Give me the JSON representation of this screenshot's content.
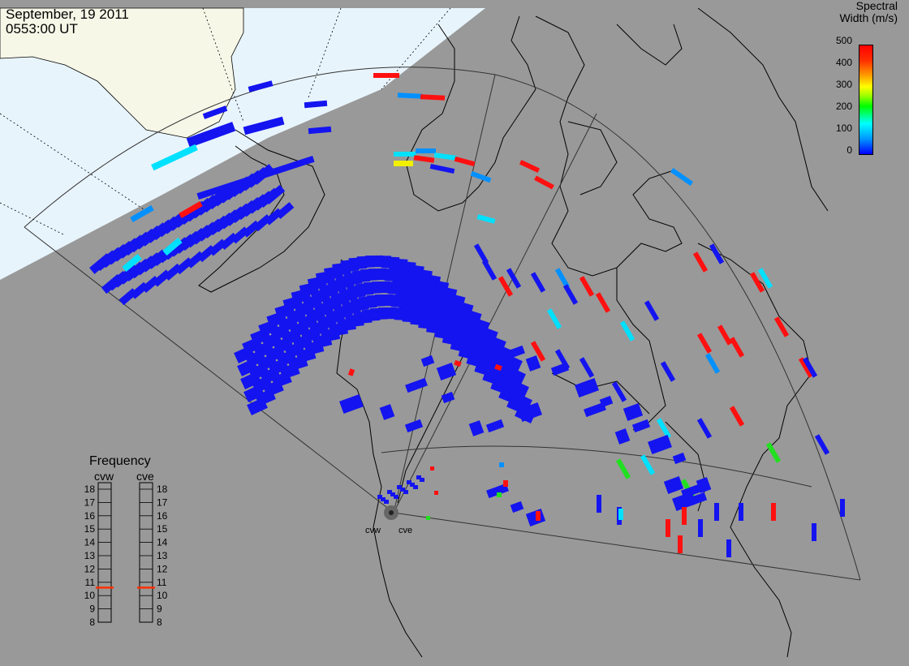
{
  "header": {
    "date": "September, 19 2011",
    "time": "0553:00 UT"
  },
  "colorbar": {
    "title_line1": "Spectral",
    "title_line2": "Width (m/s)",
    "ticks": [
      "500",
      "400",
      "300",
      "200",
      "100",
      "0"
    ],
    "range": [
      0,
      500
    ],
    "colors": [
      "#0000ff",
      "#0096ff",
      "#00ffff",
      "#00ff00",
      "#ffff00",
      "#ff8000",
      "#ff0000"
    ]
  },
  "frequency_panel": {
    "title": "Frequency",
    "left_label": "cvw",
    "right_label": "cve",
    "scale": [
      "18",
      "17",
      "16",
      "15",
      "14",
      "13",
      "12",
      "11",
      "10",
      "9",
      "8"
    ],
    "cvw_value": 10.6,
    "cve_value": 10.6,
    "marker_color": "#ff3000"
  },
  "radar_sites": [
    "cvw",
    "cve"
  ],
  "colors": {
    "land_background": "#999999",
    "daylight_region": "#e8f4fc",
    "daylight_land": "#f7f7e8",
    "echo_blue": "#1414f0",
    "echo_red": "#ff1010",
    "echo_cyan": "#00e0ff",
    "echo_lightblue": "#0090ff",
    "echo_green": "#20e020",
    "echo_yellow": "#f0f000"
  }
}
